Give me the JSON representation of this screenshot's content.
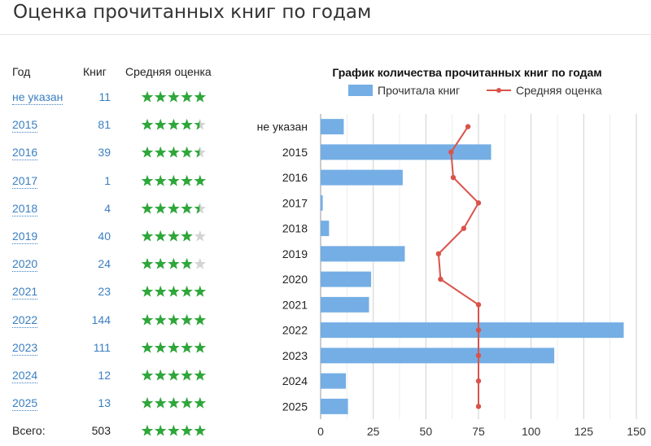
{
  "page": {
    "title": "Оценка прочитанных книг по годам"
  },
  "table": {
    "headers": {
      "year": "Год",
      "count": "Книг",
      "rating": "Средняя оценка"
    },
    "rows": [
      {
        "year": "не указан",
        "count": "11",
        "stars": 5
      },
      {
        "year": "2015",
        "count": "81",
        "stars": 4.5
      },
      {
        "year": "2016",
        "count": "39",
        "stars": 4.5
      },
      {
        "year": "2017",
        "count": "1",
        "stars": 5
      },
      {
        "year": "2018",
        "count": "4",
        "stars": 4.5
      },
      {
        "year": "2019",
        "count": "40",
        "stars": 4
      },
      {
        "year": "2020",
        "count": "24",
        "stars": 4
      },
      {
        "year": "2021",
        "count": "23",
        "stars": 5
      },
      {
        "year": "2022",
        "count": "144",
        "stars": 5
      },
      {
        "year": "2023",
        "count": "111",
        "stars": 5
      },
      {
        "year": "2024",
        "count": "12",
        "stars": 5
      },
      {
        "year": "2025",
        "count": "13",
        "stars": 5
      }
    ],
    "total": {
      "label": "Всего:",
      "count": "503",
      "stars": 5
    }
  },
  "colors": {
    "star": "#2ea73a",
    "star_empty": "#d4d4d4",
    "bar": "#74aee5",
    "line": "#d9534a",
    "link": "#3a7fc1"
  },
  "chart_data": {
    "type": "bar",
    "orientation": "horizontal",
    "title": "График количества прочитанных книг по годам",
    "categories": [
      "не указан",
      "2015",
      "2016",
      "2017",
      "2018",
      "2019",
      "2020",
      "2021",
      "2022",
      "2023",
      "2024",
      "2025"
    ],
    "series": [
      {
        "name": "Прочитала книг",
        "type": "bar",
        "values": [
          11,
          81,
          39,
          1,
          4,
          40,
          24,
          23,
          144,
          111,
          12,
          13
        ]
      },
      {
        "name": "Средняя оценка",
        "type": "line",
        "values": [
          70,
          62,
          63,
          75,
          68,
          56,
          57,
          75,
          75,
          75,
          75,
          75
        ]
      }
    ],
    "xlim": [
      0,
      150
    ],
    "xticks": [
      0,
      25,
      50,
      75,
      100,
      125,
      150
    ],
    "grid": true,
    "legend": "top"
  }
}
